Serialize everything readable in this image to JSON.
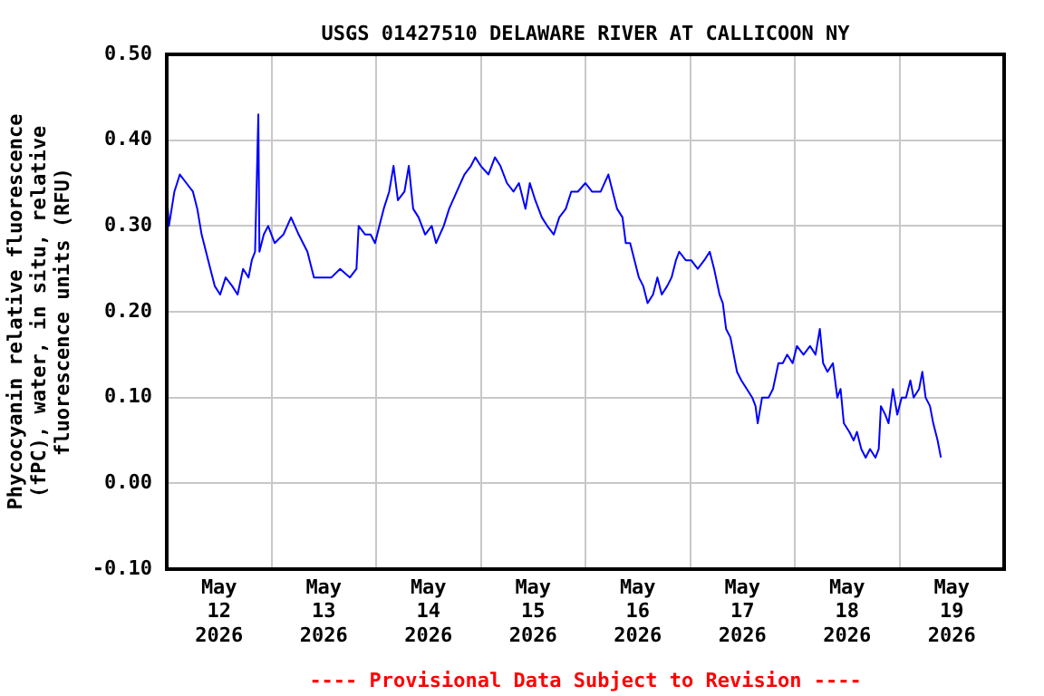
{
  "chart_data": {
    "type": "line",
    "title": "USGS 01427510 DELAWARE RIVER AT CALLICOON NY",
    "ylabel": "Phycocyanin relative fluorescence (fPC), water, in situ, relative fluorescence units (RFU)",
    "annotations": [
      "---- Provisional Data Subject to Revision ----"
    ],
    "x": [
      "2026-05-12T00:15",
      "2026-05-12T00:30",
      "2026-05-12T01:45",
      "2026-05-12T03:00",
      "2026-05-12T04:30",
      "2026-05-12T06:00",
      "2026-05-12T07:00",
      "2026-05-12T08:00",
      "2026-05-12T09:00",
      "2026-05-12T10:00",
      "2026-05-12T11:00",
      "2026-05-12T12:15",
      "2026-05-12T13:30",
      "2026-05-12T15:00",
      "2026-05-12T16:15",
      "2026-05-12T17:30",
      "2026-05-12T18:45",
      "2026-05-12T19:30",
      "2026-05-12T20:15",
      "2026-05-12T21:00",
      "2026-05-12T21:15",
      "2026-05-12T22:15",
      "2026-05-12T23:15",
      "2026-05-13T00:45",
      "2026-05-13T02:45",
      "2026-05-13T04:30",
      "2026-05-13T06:15",
      "2026-05-13T08:15",
      "2026-05-13T09:45",
      "2026-05-13T11:45",
      "2026-05-13T13:45",
      "2026-05-13T15:45",
      "2026-05-13T18:00",
      "2026-05-13T19:30",
      "2026-05-13T20:00",
      "2026-05-13T21:30",
      "2026-05-13T22:45",
      "2026-05-13T23:45",
      "2026-05-14T00:45",
      "2026-05-14T01:45",
      "2026-05-14T03:00",
      "2026-05-14T04:00",
      "2026-05-14T05:00",
      "2026-05-14T06:30",
      "2026-05-14T07:30",
      "2026-05-14T08:30",
      "2026-05-14T09:45",
      "2026-05-14T11:15",
      "2026-05-14T12:45",
      "2026-05-14T13:45",
      "2026-05-14T15:30",
      "2026-05-14T16:45",
      "2026-05-14T18:30",
      "2026-05-14T20:15",
      "2026-05-14T21:45",
      "2026-05-14T22:45",
      "2026-05-15T00:00",
      "2026-05-15T01:45",
      "2026-05-15T03:15",
      "2026-05-15T04:30",
      "2026-05-15T06:00",
      "2026-05-15T07:30",
      "2026-05-15T08:45",
      "2026-05-15T10:15",
      "2026-05-15T11:15",
      "2026-05-15T12:30",
      "2026-05-15T14:00",
      "2026-05-15T15:15",
      "2026-05-15T16:45",
      "2026-05-15T18:00",
      "2026-05-15T19:30",
      "2026-05-15T20:45",
      "2026-05-15T22:15",
      "2026-05-16T00:00",
      "2026-05-16T01:30",
      "2026-05-16T02:15",
      "2026-05-16T03:30",
      "2026-05-16T05:15",
      "2026-05-16T06:15",
      "2026-05-16T07:15",
      "2026-05-16T08:30",
      "2026-05-16T09:15",
      "2026-05-16T10:15",
      "2026-05-16T11:15",
      "2026-05-16T12:15",
      "2026-05-16T13:15",
      "2026-05-16T14:15",
      "2026-05-16T15:30",
      "2026-05-16T16:30",
      "2026-05-16T17:30",
      "2026-05-16T18:45",
      "2026-05-16T19:45",
      "2026-05-16T20:45",
      "2026-05-16T21:30",
      "2026-05-16T23:00",
      "2026-05-17T00:15",
      "2026-05-17T01:45",
      "2026-05-17T03:15",
      "2026-05-17T04:30",
      "2026-05-17T05:30",
      "2026-05-17T06:45",
      "2026-05-17T07:30",
      "2026-05-17T08:15",
      "2026-05-17T09:15",
      "2026-05-17T10:00",
      "2026-05-17T10:45",
      "2026-05-17T11:45",
      "2026-05-17T13:00",
      "2026-05-17T14:15",
      "2026-05-17T15:00",
      "2026-05-17T15:30",
      "2026-05-17T16:30",
      "2026-05-17T18:00",
      "2026-05-17T19:00",
      "2026-05-17T20:15",
      "2026-05-17T21:15",
      "2026-05-17T22:15",
      "2026-05-17T23:30",
      "2026-05-18T00:30",
      "2026-05-18T02:00",
      "2026-05-18T03:30",
      "2026-05-18T04:45",
      "2026-05-18T05:45",
      "2026-05-18T06:30",
      "2026-05-18T07:30",
      "2026-05-18T08:45",
      "2026-05-18T09:45",
      "2026-05-18T10:30",
      "2026-05-18T11:15",
      "2026-05-18T12:30",
      "2026-05-18T13:30",
      "2026-05-18T14:15",
      "2026-05-18T15:15",
      "2026-05-18T16:15",
      "2026-05-18T17:15",
      "2026-05-18T18:30",
      "2026-05-18T19:15",
      "2026-05-18T19:45",
      "2026-05-18T20:45",
      "2026-05-18T21:30",
      "2026-05-18T22:30",
      "2026-05-18T23:30",
      "2026-05-19T00:30",
      "2026-05-19T01:30",
      "2026-05-19T02:30",
      "2026-05-19T03:15",
      "2026-05-19T04:30",
      "2026-05-19T05:15",
      "2026-05-19T06:00",
      "2026-05-19T07:00",
      "2026-05-19T07:45",
      "2026-05-19T08:45",
      "2026-05-19T09:30"
    ],
    "series": [
      {
        "color": "#0000ff",
        "values": [
          0.32,
          0.3,
          0.34,
          0.36,
          0.35,
          0.34,
          0.32,
          0.29,
          0.27,
          0.25,
          0.23,
          0.22,
          0.24,
          0.23,
          0.22,
          0.25,
          0.24,
          0.26,
          0.27,
          0.43,
          0.27,
          0.29,
          0.3,
          0.28,
          0.29,
          0.31,
          0.29,
          0.27,
          0.24,
          0.24,
          0.24,
          0.25,
          0.24,
          0.25,
          0.3,
          0.29,
          0.29,
          0.28,
          0.3,
          0.32,
          0.34,
          0.37,
          0.33,
          0.34,
          0.37,
          0.32,
          0.31,
          0.29,
          0.3,
          0.28,
          0.3,
          0.32,
          0.34,
          0.36,
          0.37,
          0.38,
          0.37,
          0.36,
          0.38,
          0.37,
          0.35,
          0.34,
          0.35,
          0.32,
          0.35,
          0.33,
          0.31,
          0.3,
          0.29,
          0.31,
          0.32,
          0.34,
          0.34,
          0.35,
          0.34,
          0.34,
          0.34,
          0.36,
          0.34,
          0.32,
          0.31,
          0.28,
          0.28,
          0.26,
          0.24,
          0.23,
          0.21,
          0.22,
          0.24,
          0.22,
          0.23,
          0.24,
          0.26,
          0.27,
          0.26,
          0.26,
          0.25,
          0.26,
          0.27,
          0.25,
          0.22,
          0.21,
          0.18,
          0.17,
          0.15,
          0.13,
          0.12,
          0.11,
          0.1,
          0.09,
          0.07,
          0.1,
          0.1,
          0.11,
          0.14,
          0.14,
          0.15,
          0.14,
          0.16,
          0.15,
          0.16,
          0.15,
          0.18,
          0.14,
          0.13,
          0.14,
          0.1,
          0.11,
          0.07,
          0.06,
          0.05,
          0.06,
          0.04,
          0.03,
          0.04,
          0.03,
          0.04,
          0.09,
          0.08,
          0.07,
          0.11,
          0.08,
          0.1,
          0.1,
          0.12,
          0.1,
          0.11,
          0.13,
          0.1,
          0.09,
          0.07,
          0.05,
          0.03
        ]
      }
    ],
    "xlim": [
      "2026-05-12T00:00",
      "2026-05-20T00:00"
    ],
    "xticks": [
      {
        "value": "2026-05-12T00:00",
        "label": null
      },
      {
        "value": "2026-05-12T12:00",
        "label": "May 12 2026"
      },
      {
        "value": "2026-05-13T00:00",
        "label": null
      },
      {
        "value": "2026-05-13T12:00",
        "label": "May 13 2026"
      },
      {
        "value": "2026-05-14T00:00",
        "label": null
      },
      {
        "value": "2026-05-14T12:00",
        "label": "May 14 2026"
      },
      {
        "value": "2026-05-15T00:00",
        "label": null
      },
      {
        "value": "2026-05-15T12:00",
        "label": "May 15 2026"
      },
      {
        "value": "2026-05-16T00:00",
        "label": null
      },
      {
        "value": "2026-05-16T12:00",
        "label": "May 16 2026"
      },
      {
        "value": "2026-05-17T00:00",
        "label": null
      },
      {
        "value": "2026-05-17T12:00",
        "label": "May 17 2026"
      },
      {
        "value": "2026-05-18T00:00",
        "label": null
      },
      {
        "value": "2026-05-18T12:00",
        "label": "May 18 2026"
      },
      {
        "value": "2026-05-19T00:00",
        "label": null
      },
      {
        "value": "2026-05-19T12:00",
        "label": "May 19 2026"
      },
      {
        "value": "2026-05-20T00:00",
        "label": null
      }
    ],
    "ylim": [
      -0.1,
      0.5
    ],
    "yticks": [
      {
        "value": -0.1,
        "label": "-0.10"
      },
      {
        "value": 0,
        "label": "0.00"
      },
      {
        "value": 0.1,
        "label": "0.10"
      },
      {
        "value": 0.2,
        "label": "0.20"
      },
      {
        "value": 0.3,
        "label": "0.30"
      },
      {
        "value": 0.4,
        "label": "0.40"
      },
      {
        "value": 0.5,
        "label": "0.50"
      }
    ],
    "grid": true,
    "legend": false,
    "marker": "none",
    "line_style": "solid"
  }
}
